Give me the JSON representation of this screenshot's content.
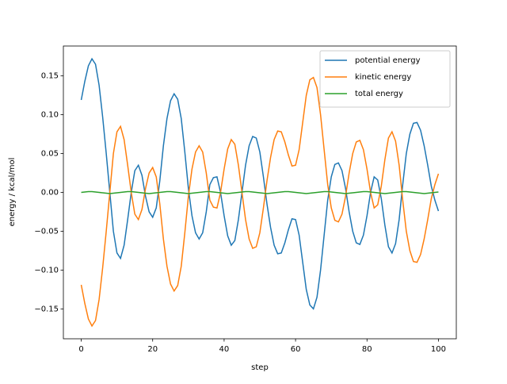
{
  "chart_data": {
    "type": "line",
    "xlabel": "step",
    "ylabel": "energy / kcal/mol",
    "x": [
      0,
      1,
      2,
      3,
      4,
      5,
      6,
      7,
      8,
      9,
      10,
      11,
      12,
      13,
      14,
      15,
      16,
      17,
      18,
      19,
      20,
      21,
      22,
      23,
      24,
      25,
      26,
      27,
      28,
      29,
      30,
      31,
      32,
      33,
      34,
      35,
      36,
      37,
      38,
      39,
      40,
      41,
      42,
      43,
      44,
      45,
      46,
      47,
      48,
      49,
      50,
      51,
      52,
      53,
      54,
      55,
      56,
      57,
      58,
      59,
      60,
      61,
      62,
      63,
      64,
      65,
      66,
      67,
      68,
      69,
      70,
      71,
      72,
      73,
      74,
      75,
      76,
      77,
      78,
      79,
      80,
      81,
      82,
      83,
      84,
      85,
      86,
      87,
      88,
      89,
      90,
      91,
      92,
      93,
      94,
      95,
      96,
      97,
      98,
      99,
      100
    ],
    "series": [
      {
        "name": "potential energy",
        "color": "#1f77b4",
        "values": [
          0.119,
          0.143,
          0.163,
          0.172,
          0.165,
          0.138,
          0.097,
          0.05,
          0.0,
          -0.05,
          -0.078,
          -0.085,
          -0.068,
          -0.035,
          0.0,
          0.028,
          0.035,
          0.022,
          -0.005,
          -0.025,
          -0.032,
          -0.02,
          0.015,
          0.06,
          0.095,
          0.118,
          0.127,
          0.12,
          0.095,
          0.052,
          0.005,
          -0.03,
          -0.052,
          -0.06,
          -0.052,
          -0.025,
          0.01,
          0.019,
          0.02,
          0.0,
          -0.03,
          -0.056,
          -0.068,
          -0.062,
          -0.035,
          0.0,
          0.035,
          0.06,
          0.072,
          0.07,
          0.052,
          0.02,
          -0.015,
          -0.045,
          -0.068,
          -0.079,
          -0.078,
          -0.065,
          -0.048,
          -0.034,
          -0.035,
          -0.055,
          -0.09,
          -0.125,
          -0.145,
          -0.15,
          -0.135,
          -0.1,
          -0.055,
          -0.01,
          0.02,
          0.036,
          0.038,
          0.028,
          0.005,
          -0.025,
          -0.05,
          -0.065,
          -0.067,
          -0.055,
          -0.03,
          0.0,
          0.02,
          0.016,
          -0.008,
          -0.042,
          -0.07,
          -0.078,
          -0.066,
          -0.035,
          0.01,
          0.05,
          0.075,
          0.089,
          0.09,
          0.08,
          0.06,
          0.035,
          0.008,
          -0.01,
          -0.024
        ]
      },
      {
        "name": "kinetic energy",
        "color": "#ff7f0e",
        "values": [
          -0.119,
          -0.143,
          -0.163,
          -0.172,
          -0.165,
          -0.138,
          -0.097,
          -0.05,
          0.0,
          0.05,
          0.078,
          0.085,
          0.068,
          0.035,
          0.0,
          -0.028,
          -0.035,
          -0.022,
          0.005,
          0.025,
          0.032,
          0.02,
          -0.015,
          -0.06,
          -0.095,
          -0.118,
          -0.127,
          -0.12,
          -0.095,
          -0.052,
          -0.005,
          0.03,
          0.052,
          0.06,
          0.052,
          0.025,
          -0.01,
          -0.019,
          -0.02,
          0.0,
          0.03,
          0.056,
          0.068,
          0.062,
          0.035,
          0.0,
          -0.035,
          -0.06,
          -0.072,
          -0.07,
          -0.052,
          -0.02,
          0.015,
          0.045,
          0.068,
          0.079,
          0.078,
          0.065,
          0.048,
          0.034,
          0.035,
          0.055,
          0.09,
          0.125,
          0.145,
          0.148,
          0.135,
          0.1,
          0.055,
          0.01,
          -0.02,
          -0.036,
          -0.038,
          -0.028,
          -0.005,
          0.025,
          0.05,
          0.065,
          0.067,
          0.055,
          0.03,
          0.0,
          -0.02,
          -0.016,
          0.008,
          0.042,
          0.07,
          0.078,
          0.066,
          0.035,
          -0.01,
          -0.05,
          -0.075,
          -0.089,
          -0.09,
          -0.08,
          -0.06,
          -0.035,
          -0.008,
          0.01,
          0.024
        ]
      },
      {
        "name": "total energy",
        "color": "#2ca02c",
        "values": [
          0,
          0.0005,
          0.001,
          0.001,
          0.0005,
          0,
          -0.0005,
          -0.001,
          -0.0015,
          -0.001,
          -0.0005,
          0,
          0.0005,
          0.001,
          0.001,
          0.0005,
          0,
          -0.0005,
          -0.001,
          -0.0015,
          -0.001,
          -0.0005,
          0,
          0.0005,
          0.001,
          0.001,
          0.0005,
          0,
          -0.0005,
          -0.001,
          -0.0015,
          -0.001,
          -0.0005,
          0,
          0.0005,
          0.001,
          0.001,
          0.0005,
          0,
          -0.0005,
          -0.001,
          -0.0015,
          -0.001,
          -0.0005,
          0,
          0.0005,
          0.001,
          0.001,
          0.0005,
          0,
          -0.0005,
          -0.001,
          -0.0015,
          -0.001,
          -0.0005,
          0,
          0.0005,
          0.001,
          0.001,
          0.0005,
          0,
          -0.0005,
          -0.001,
          -0.0015,
          -0.001,
          -0.0005,
          0,
          0.0005,
          0.001,
          0.001,
          0.0005,
          0,
          -0.0005,
          -0.001,
          -0.0015,
          -0.001,
          -0.0005,
          0,
          0.0005,
          0.001,
          0.001,
          0.0005,
          0,
          -0.0005,
          -0.001,
          -0.0015,
          -0.001,
          -0.0005,
          0,
          0.0005,
          0.001,
          0.001,
          0.0005,
          0,
          -0.0005,
          -0.001,
          -0.0015,
          -0.001,
          -0.0005,
          0,
          0.0005
        ]
      }
    ],
    "xlim": [
      -5,
      105
    ],
    "ylim": [
      -0.1885,
      0.1885
    ],
    "xticks": [
      0,
      20,
      40,
      60,
      80,
      100
    ],
    "yticks": [
      {
        "value": -0.15,
        "label": "−0.15"
      },
      {
        "value": -0.1,
        "label": "−0.10"
      },
      {
        "value": -0.05,
        "label": "−0.05"
      },
      {
        "value": 0,
        "label": "0.00"
      },
      {
        "value": 0.05,
        "label": "0.05"
      },
      {
        "value": 0.1,
        "label": "0.10"
      },
      {
        "value": 0.15,
        "label": "0.15"
      }
    ],
    "legend": "upper right"
  }
}
